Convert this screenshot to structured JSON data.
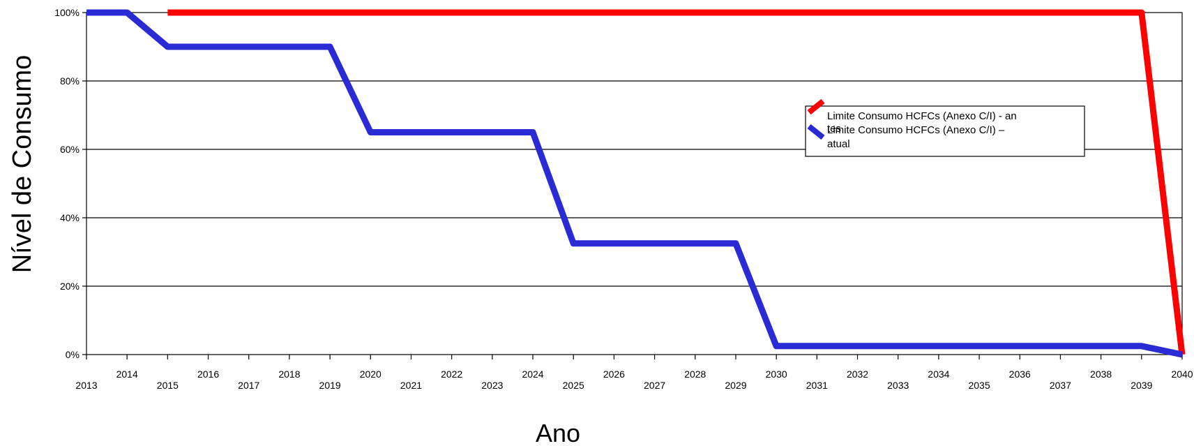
{
  "chart_data": {
    "type": "line",
    "title": "",
    "xlabel": "Ano",
    "ylabel": "Nível de Consumo",
    "ylim": [
      0,
      100
    ],
    "y_ticks": [
      "0%",
      "20%",
      "40%",
      "60%",
      "80%",
      "100%"
    ],
    "x": [
      2013,
      2014,
      2015,
      2016,
      2017,
      2018,
      2019,
      2020,
      2021,
      2022,
      2023,
      2024,
      2025,
      2026,
      2027,
      2028,
      2029,
      2030,
      2031,
      2032,
      2033,
      2034,
      2035,
      2036,
      2037,
      2038,
      2039,
      2040
    ],
    "x_tick_labels": [
      "2013",
      "2014",
      "2015",
      "2016",
      "2017",
      "2018",
      "2019",
      "2020",
      "2021",
      "2022",
      "2023",
      "2024",
      "2025",
      "2026",
      "2027",
      "2028",
      "2029",
      "2030",
      "2031",
      "2032",
      "2033",
      "2034",
      "2035",
      "2036",
      "2037",
      "2038",
      "2039",
      "2040"
    ],
    "grid": true,
    "legend_position": "right",
    "series": [
      {
        "name": "Limite Consumo HCFCs (Anexo C/I) - antes",
        "legend_lines": [
          "Limite Consumo HCFCs (Anexo C/I) -  an",
          "tes"
        ],
        "color": "#ff0000",
        "values": [
          null,
          null,
          100,
          100,
          100,
          100,
          100,
          100,
          100,
          100,
          100,
          100,
          100,
          100,
          100,
          100,
          100,
          100,
          100,
          100,
          100,
          100,
          100,
          100,
          100,
          100,
          100,
          0
        ]
      },
      {
        "name": "Limite Consumo HCFCs (Anexo C/I) – atual",
        "legend_lines": [
          "Limite Consumo HCFCs (Anexo C/I) –",
          "atual"
        ],
        "color": "#2b2bd6",
        "values": [
          100,
          100,
          90,
          90,
          90,
          90,
          90,
          65,
          65,
          65,
          65,
          65,
          32.5,
          32.5,
          32.5,
          32.5,
          32.5,
          2.5,
          2.5,
          2.5,
          2.5,
          2.5,
          2.5,
          2.5,
          2.5,
          2.5,
          2.5,
          0
        ]
      }
    ]
  }
}
